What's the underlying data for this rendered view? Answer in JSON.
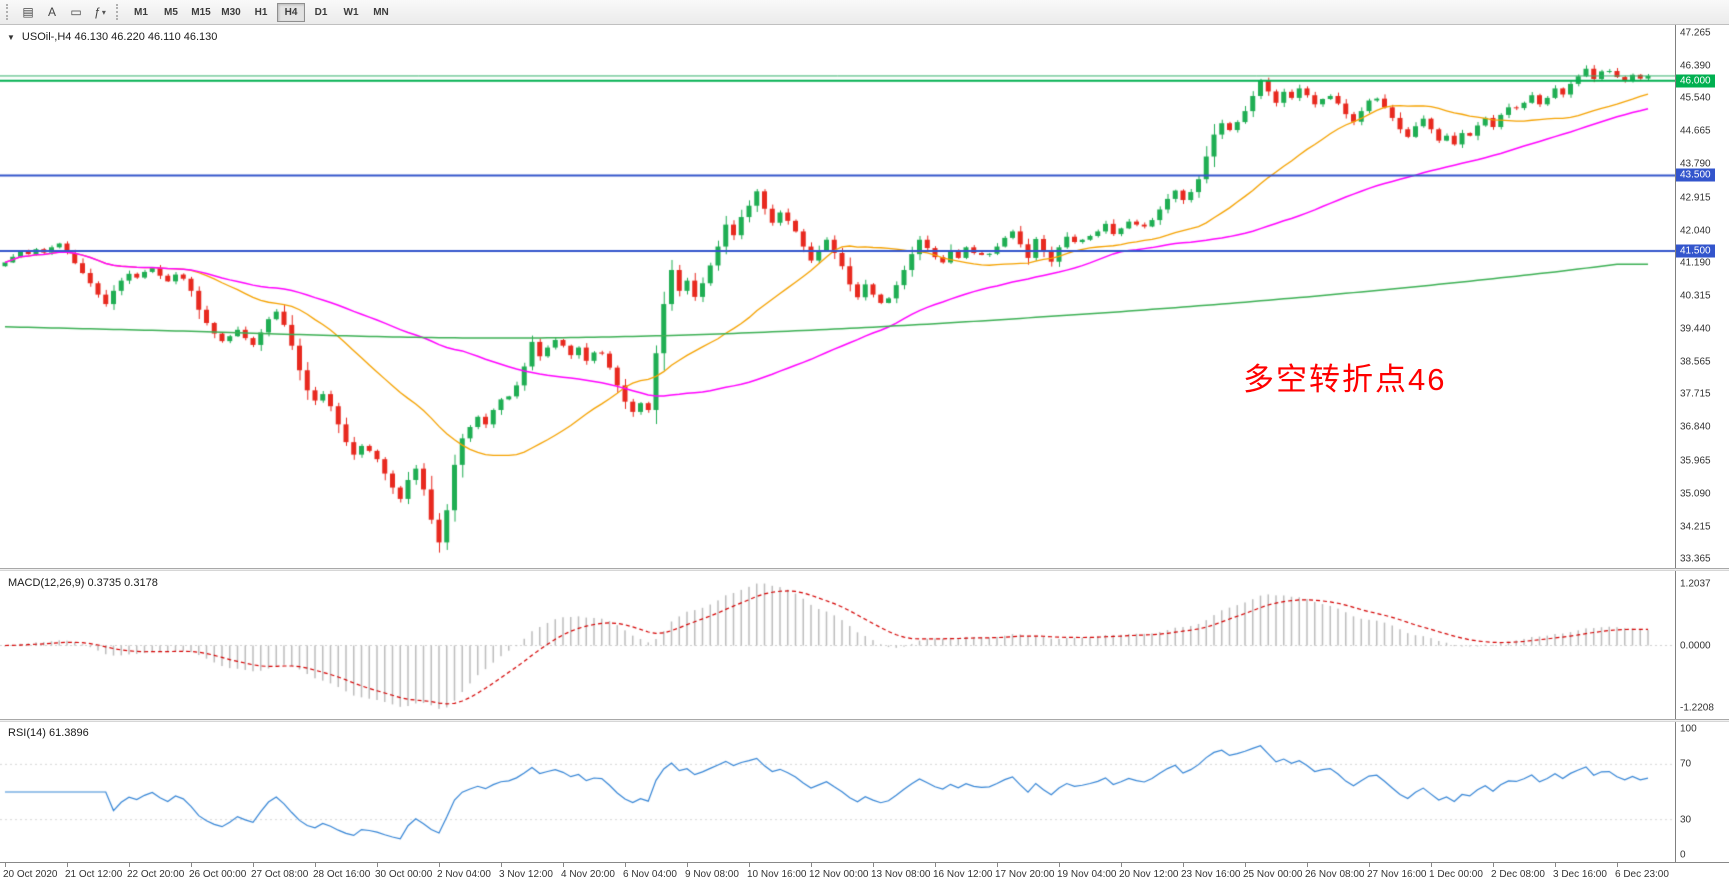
{
  "toolbar": {
    "tool_buttons": [
      {
        "name": "chart-list-button",
        "icon": "bar-chart-icon",
        "glyph": "▤"
      },
      {
        "name": "text-tool-button",
        "icon": "text-tool-icon",
        "glyph": "A"
      },
      {
        "name": "objects-button",
        "icon": "rectangle-icon",
        "glyph": "▭"
      },
      {
        "name": "indicators-button",
        "icon": "indicator-function-icon",
        "glyph": "ƒ",
        "caret": "▾"
      }
    ],
    "timeframes": [
      "M1",
      "M5",
      "M15",
      "M30",
      "H1",
      "H4",
      "D1",
      "W1",
      "MN"
    ],
    "active_timeframe": "H4"
  },
  "chart_header": {
    "symbol": "USOil-",
    "timeframe": "H4",
    "ohlc": {
      "open": "46.130",
      "high": "46.220",
      "low": "46.110",
      "close": "46.130"
    },
    "symbol_info": "USOil-,H4 46.130 46.220 46.110 46.130",
    "collapse_icon": "▼"
  },
  "annotation": {
    "text": "多空转折点46",
    "color": "#ff0000"
  },
  "colors": {
    "up": "#1fae53",
    "down": "#e8291f",
    "ma_fast": "#f5a200",
    "ma_mid": "#ff00ff",
    "ma_slow": "#3cb054",
    "hline_green": "#00b050",
    "bid_line": "#33b06a",
    "hline_blue": "#3355cc",
    "macd_bar": "#bdbdbd",
    "macd_signal": "#d40000",
    "rsi_line": "#3585d6"
  },
  "chart_data": [
    {
      "type": "candlestick",
      "title": "USOil- H4",
      "y_axis_ticks": [
        "47.265",
        "46.390",
        "45.540",
        "44.665",
        "43.790",
        "42.915",
        "42.040",
        "41.190",
        "40.315",
        "39.440",
        "38.565",
        "37.715",
        "36.840",
        "35.965",
        "35.090",
        "34.215",
        "33.365"
      ],
      "y_range": [
        33.15,
        47.45
      ],
      "closes": [
        41.2,
        41.35,
        41.5,
        41.42,
        41.55,
        41.46,
        41.6,
        41.7,
        41.45,
        41.18,
        40.92,
        40.65,
        40.35,
        40.1,
        40.45,
        40.72,
        40.9,
        40.8,
        40.95,
        41.05,
        40.85,
        40.7,
        40.88,
        40.77,
        40.45,
        39.95,
        39.6,
        39.32,
        39.12,
        39.25,
        39.42,
        39.2,
        39.02,
        39.35,
        39.7,
        39.9,
        39.55,
        39.0,
        38.35,
        37.82,
        37.55,
        37.72,
        37.4,
        36.92,
        36.45,
        36.12,
        36.35,
        36.22,
        36.0,
        35.62,
        35.25,
        34.95,
        35.45,
        35.75,
        35.2,
        34.4,
        33.8,
        34.65,
        35.85,
        36.55,
        36.85,
        37.12,
        36.92,
        37.3,
        37.58,
        37.66,
        37.95,
        38.45,
        39.1,
        38.72,
        38.95,
        39.15,
        39.0,
        38.75,
        38.95,
        38.6,
        38.82,
        38.79,
        38.42,
        37.95,
        37.52,
        37.25,
        37.48,
        37.3,
        38.8,
        40.1,
        41.0,
        40.45,
        40.72,
        40.29,
        40.65,
        41.12,
        41.62,
        42.2,
        41.92,
        42.4,
        42.7,
        43.08,
        42.62,
        42.25,
        42.52,
        42.3,
        42.02,
        41.62,
        41.25,
        41.52,
        41.8,
        41.45,
        41.1,
        40.62,
        40.28,
        40.62,
        40.35,
        40.13,
        40.25,
        40.6,
        41.0,
        41.42,
        41.8,
        41.58,
        41.34,
        41.2,
        41.52,
        41.32,
        41.6,
        41.45,
        41.4,
        41.43,
        41.62,
        41.85,
        42.02,
        41.68,
        41.32,
        41.82,
        41.5,
        41.22,
        41.6,
        41.88,
        41.74,
        41.8,
        41.9,
        42.02,
        42.22,
        41.95,
        42.1,
        42.28,
        42.2,
        42.15,
        42.32,
        42.6,
        42.88,
        43.1,
        42.85,
        43.06,
        43.4,
        44.0,
        44.58,
        44.88,
        44.7,
        44.91,
        45.2,
        45.6,
        46.0,
        45.72,
        45.42,
        45.71,
        45.55,
        45.8,
        45.62,
        45.38,
        45.52,
        45.6,
        45.4,
        45.12,
        44.92,
        45.2,
        45.48,
        45.53,
        45.3,
        45.02,
        44.72,
        44.52,
        44.8,
        45.0,
        44.72,
        44.42,
        44.55,
        44.32,
        44.62,
        44.55,
        44.82,
        45.02,
        44.78,
        45.1,
        45.3,
        45.28,
        45.42,
        45.62,
        45.38,
        45.55,
        45.8,
        45.64,
        45.92,
        46.12,
        46.32,
        46.05,
        46.25,
        46.26,
        46.1,
        46.0,
        46.16,
        46.06,
        46.13
      ],
      "hlines": [
        {
          "price": 46.13,
          "color": "#33b06a",
          "width": 1,
          "label": null
        },
        {
          "price": 46.0,
          "color": "#00b050",
          "width": 2,
          "label": "46.000"
        },
        {
          "price": 43.5,
          "color": "#3355cc",
          "width": 2,
          "label": "43.500"
        },
        {
          "price": 41.5,
          "color": "#3355cc",
          "width": 2,
          "label": "41.500"
        }
      ],
      "overlays": [
        {
          "name": "sma-fast",
          "method": "sma",
          "period": 24,
          "color": "#f5a200"
        },
        {
          "name": "sma-mid",
          "method": "sma",
          "period": 60,
          "color": "#ff00ff"
        },
        {
          "name": "sma-slow",
          "method": "anchors",
          "color": "#3cb054",
          "anchor_step": 8,
          "anchor_values": [
            39.5,
            39.46,
            39.42,
            39.38,
            39.33,
            39.28,
            39.24,
            39.21,
            39.2,
            39.21,
            39.24,
            39.28,
            39.34,
            39.41,
            39.49,
            39.58,
            39.68,
            39.79,
            39.9,
            40.02,
            40.15,
            40.29,
            40.44,
            40.6,
            40.77,
            40.95,
            41.15
          ]
        }
      ]
    },
    {
      "type": "bar",
      "name": "MACD",
      "derived_from": "closes",
      "params": {
        "fast": 12,
        "slow": 26,
        "signal": 9
      },
      "scale_labels": [
        "1.2037",
        "0.0000",
        "-1.2208"
      ],
      "current_macd": 0.3735,
      "current_signal": 0.3178
    },
    {
      "type": "line",
      "name": "RSI",
      "derived_from": "closes",
      "period": 14,
      "current": 61.3896,
      "levels": [
        70,
        30
      ],
      "scale_labels": [
        "100",
        "70",
        "30",
        "0"
      ]
    }
  ],
  "macd_panel": {
    "label": "MACD(12,26,9) 0.3735 0.3178",
    "scale": [
      {
        "label": "1.2037",
        "value": 1.2037
      },
      {
        "label": "0.0000",
        "value": 0
      },
      {
        "label": "-1.2208",
        "value": -1.2208
      }
    ]
  },
  "rsi_panel": {
    "label": "RSI(14) 61.3896",
    "scale": [
      {
        "label": "100",
        "value": 100
      },
      {
        "label": "70",
        "value": 70
      },
      {
        "label": "30",
        "value": 30
      },
      {
        "label": "0",
        "value": 0
      }
    ],
    "levels": [
      70,
      30
    ]
  },
  "time_axis": {
    "candles_per_label": 8,
    "labels": [
      "20 Oct 2020",
      "21 Oct 12:00",
      "22 Oct 20:00",
      "26 Oct 00:00",
      "27 Oct 08:00",
      "28 Oct 16:00",
      "30 Oct 00:00",
      "2 Nov 04:00",
      "3 Nov 12:00",
      "4 Nov 20:00",
      "6 Nov 04:00",
      "9 Nov 08:00",
      "10 Nov 16:00",
      "12 Nov 00:00",
      "13 Nov 08:00",
      "16 Nov 12:00",
      "17 Nov 20:00",
      "19 Nov 04:00",
      "20 Nov 12:00",
      "23 Nov 16:00",
      "25 Nov 00:00",
      "26 Nov 08:00",
      "27 Nov 16:00",
      "1 Dec 00:00",
      "2 Dec 08:00",
      "3 Dec 16:00",
      "6 Dec 23:00"
    ]
  }
}
